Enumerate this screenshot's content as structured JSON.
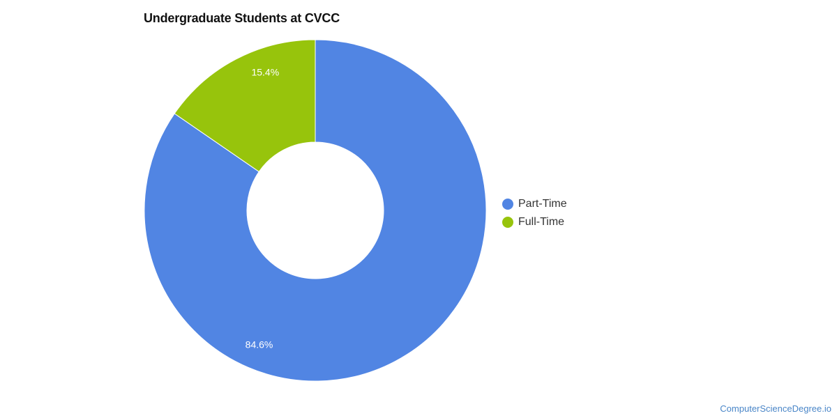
{
  "chart_data": {
    "type": "pie",
    "subtype": "donut",
    "title": "Undergraduate Students at CVCC",
    "slices": [
      {
        "name": "Part-Time",
        "value": 84.6,
        "label": "84.6%",
        "color": "#5185e3"
      },
      {
        "name": "Full-Time",
        "value": 15.4,
        "label": "15.4%",
        "color": "#97c40c"
      }
    ],
    "legend": {
      "placement": "right",
      "entries": [
        "Part-Time",
        "Full-Time"
      ]
    }
  },
  "legend": {
    "items": [
      {
        "label": "Part-Time",
        "color": "#5185e3"
      },
      {
        "label": "Full-Time",
        "color": "#97c40c"
      }
    ]
  },
  "footer": {
    "watermark": "ComputerScienceDegree.io"
  }
}
